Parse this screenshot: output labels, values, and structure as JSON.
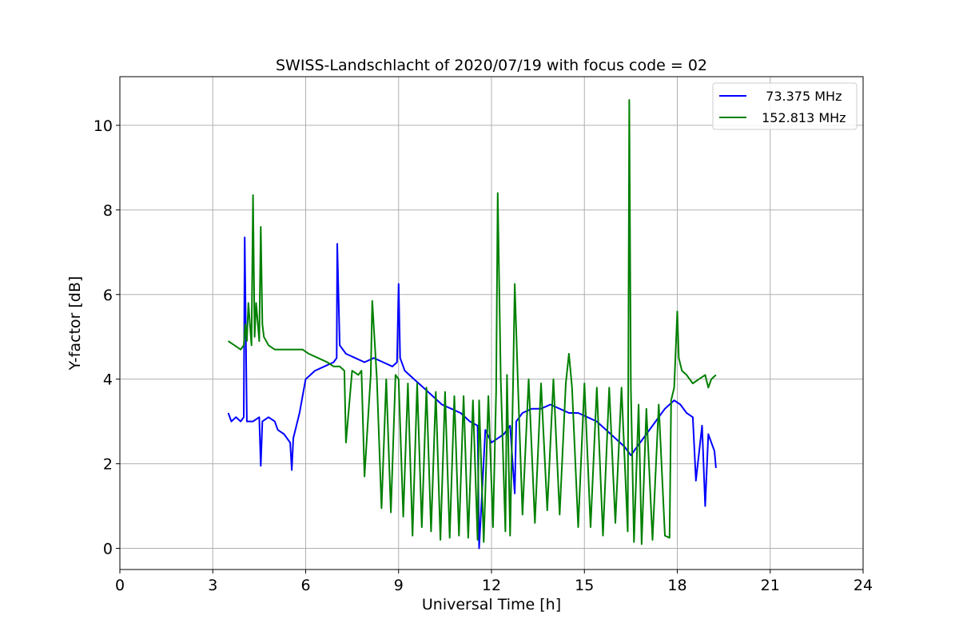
{
  "chart_data": {
    "type": "line",
    "title": "SWISS-Landschlacht of 2020/07/19 with focus code = 02",
    "xlabel": "Universal Time [h]",
    "ylabel": "Y-factor [dB]",
    "xlim": [
      0,
      24
    ],
    "ylim": [
      -0.5,
      11.15
    ],
    "xticks": [
      0,
      3,
      6,
      9,
      12,
      15,
      18,
      21,
      24
    ],
    "yticks": [
      0,
      2,
      4,
      6,
      8,
      10
    ],
    "grid": true,
    "legend_position": "top-right",
    "series": [
      {
        "name": "73.375 MHz",
        "label": "  73.375 MHz",
        "color": "#0000ff",
        "x": [
          3.5,
          3.6,
          3.75,
          3.9,
          4.0,
          4.03,
          4.1,
          4.3,
          4.5,
          4.55,
          4.6,
          4.8,
          5.0,
          5.1,
          5.3,
          5.5,
          5.55,
          5.6,
          5.8,
          5.9,
          6.0,
          6.3,
          6.6,
          6.9,
          7.0,
          7.02,
          7.1,
          7.3,
          7.6,
          7.9,
          8.2,
          8.5,
          8.8,
          8.95,
          9.0,
          9.05,
          9.2,
          9.5,
          9.8,
          10.1,
          10.4,
          10.7,
          11.0,
          11.3,
          11.55,
          11.6,
          11.8,
          12.0,
          12.2,
          12.4,
          12.6,
          12.75,
          12.8,
          13.0,
          13.3,
          13.6,
          13.9,
          14.2,
          14.5,
          14.8,
          15.1,
          15.4,
          15.7,
          16.0,
          16.3,
          16.5,
          16.8,
          17.0,
          17.3,
          17.6,
          17.9,
          18.1,
          18.3,
          18.5,
          18.6,
          18.8,
          18.9,
          19.0,
          19.1,
          19.2,
          19.25
        ],
        "y": [
          3.2,
          3.0,
          3.1,
          3.0,
          3.1,
          7.35,
          3.0,
          3.0,
          3.1,
          1.95,
          3.0,
          3.1,
          3.0,
          2.8,
          2.7,
          2.5,
          1.85,
          2.6,
          3.2,
          3.6,
          4.0,
          4.2,
          4.3,
          4.4,
          4.5,
          7.2,
          4.8,
          4.6,
          4.5,
          4.4,
          4.5,
          4.4,
          4.3,
          4.4,
          6.25,
          4.5,
          4.2,
          4.0,
          3.8,
          3.6,
          3.4,
          3.3,
          3.2,
          3.0,
          2.9,
          0.0,
          2.8,
          2.5,
          2.6,
          2.7,
          2.9,
          1.3,
          3.0,
          3.2,
          3.3,
          3.3,
          3.4,
          3.3,
          3.2,
          3.2,
          3.1,
          3.0,
          2.8,
          2.6,
          2.4,
          2.2,
          2.5,
          2.7,
          3.0,
          3.3,
          3.5,
          3.4,
          3.2,
          3.1,
          1.6,
          2.9,
          1.0,
          2.7,
          2.5,
          2.3,
          1.9
        ]
      },
      {
        "name": "152.813 MHz",
        "label": " 152.813 MHz",
        "color": "#008000",
        "x": [
          3.5,
          3.7,
          3.9,
          4.0,
          4.05,
          4.1,
          4.15,
          4.25,
          4.3,
          4.35,
          4.4,
          4.5,
          4.55,
          4.6,
          4.65,
          4.8,
          5.0,
          5.3,
          5.6,
          5.9,
          6.1,
          6.4,
          6.7,
          6.9,
          7.1,
          7.25,
          7.3,
          7.5,
          7.7,
          7.8,
          7.9,
          8.1,
          8.15,
          8.3,
          8.45,
          8.6,
          8.75,
          8.9,
          9.0,
          9.15,
          9.3,
          9.45,
          9.6,
          9.75,
          9.9,
          10.05,
          10.2,
          10.35,
          10.5,
          10.65,
          10.8,
          10.95,
          11.1,
          11.25,
          11.4,
          11.55,
          11.6,
          11.75,
          11.9,
          12.05,
          12.15,
          12.2,
          12.3,
          12.45,
          12.5,
          12.6,
          12.7,
          12.75,
          12.85,
          13.0,
          13.2,
          13.4,
          13.6,
          13.8,
          14.0,
          14.2,
          14.4,
          14.5,
          14.6,
          14.8,
          15.0,
          15.2,
          15.4,
          15.6,
          15.8,
          16.0,
          16.2,
          16.4,
          16.45,
          16.5,
          16.6,
          16.75,
          16.85,
          17.0,
          17.2,
          17.4,
          17.6,
          17.75,
          17.8,
          17.9,
          18.0,
          18.05,
          18.15,
          18.3,
          18.5,
          18.7,
          18.9,
          19.0,
          19.1,
          19.25
        ],
        "y": [
          4.9,
          4.8,
          4.7,
          4.8,
          5.3,
          4.9,
          5.8,
          4.8,
          8.35,
          5.0,
          5.8,
          4.9,
          7.6,
          5.3,
          5.0,
          4.8,
          4.7,
          4.7,
          4.7,
          4.7,
          4.6,
          4.5,
          4.4,
          4.3,
          4.3,
          4.2,
          2.5,
          4.2,
          4.1,
          4.2,
          1.7,
          4.1,
          5.85,
          4.0,
          0.95,
          4.0,
          0.85,
          4.1,
          4.0,
          0.75,
          3.9,
          0.3,
          3.9,
          0.5,
          3.8,
          0.4,
          3.7,
          0.2,
          3.7,
          0.25,
          3.6,
          0.3,
          3.6,
          0.25,
          3.5,
          0.2,
          3.5,
          0.15,
          3.6,
          0.5,
          3.7,
          8.4,
          4.0,
          0.4,
          4.1,
          0.3,
          4.0,
          6.25,
          4.0,
          0.8,
          4.0,
          0.6,
          3.9,
          0.9,
          4.0,
          0.8,
          3.9,
          4.6,
          3.8,
          0.5,
          3.9,
          0.5,
          3.8,
          0.3,
          3.8,
          0.6,
          3.8,
          0.4,
          10.6,
          3.8,
          0.15,
          3.4,
          0.1,
          3.3,
          0.2,
          3.4,
          0.3,
          0.25,
          3.5,
          3.8,
          5.6,
          4.5,
          4.2,
          4.1,
          3.9,
          4.0,
          4.1,
          3.8,
          4.0,
          4.1
        ]
      }
    ]
  }
}
